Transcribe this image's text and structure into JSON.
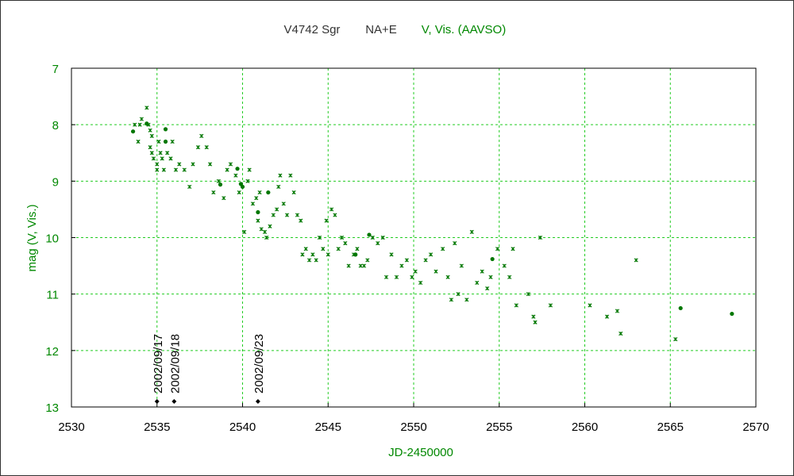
{
  "chart_data": {
    "type": "scatter",
    "title_star": "V4742 Sgr",
    "title_source": "NA+E",
    "title_band": "V, Vis. (AAVSO)",
    "xlabel": "JD-2450000",
    "ylabel": "mag (V, Vis.)",
    "xlim": [
      2530,
      2570
    ],
    "ylim": [
      7,
      13
    ],
    "y_inverted": true,
    "x_ticks": [
      2530,
      2535,
      2540,
      2545,
      2550,
      2555,
      2560,
      2565,
      2570
    ],
    "y_ticks": [
      7,
      8,
      9,
      10,
      11,
      12,
      13
    ],
    "grid": true,
    "colors": {
      "data": "#007700",
      "grid": "#22cc22",
      "axis": "#000000",
      "title_band": "#008800",
      "title_main": "#333333",
      "marker": "#000000"
    },
    "date_markers": [
      {
        "x": 2535.0,
        "label": "2002/09/17"
      },
      {
        "x": 2536.0,
        "label": "2002/09/18"
      },
      {
        "x": 2540.9,
        "label": "2002/09/23"
      }
    ],
    "series": [
      {
        "marker": "dot",
        "points": [
          [
            2533.6,
            8.12
          ],
          [
            2534.4,
            7.98
          ],
          [
            2535.5,
            8.08
          ],
          [
            2535.5,
            8.3
          ],
          [
            2538.7,
            9.06
          ],
          [
            2539.7,
            8.78
          ],
          [
            2539.9,
            9.05
          ],
          [
            2540.0,
            9.1
          ],
          [
            2540.9,
            9.55
          ],
          [
            2541.5,
            9.2
          ],
          [
            2546.6,
            10.3
          ],
          [
            2547.4,
            9.95
          ],
          [
            2554.6,
            10.38
          ],
          [
            2565.6,
            11.25
          ],
          [
            2568.6,
            11.35
          ]
        ]
      },
      {
        "marker": "cross",
        "points": [
          [
            2533.7,
            8.0
          ],
          [
            2533.9,
            8.3
          ],
          [
            2534.0,
            8.0
          ],
          [
            2534.1,
            7.9
          ],
          [
            2534.4,
            7.7
          ],
          [
            2534.5,
            8.0
          ],
          [
            2534.6,
            8.1
          ],
          [
            2534.6,
            8.4
          ],
          [
            2534.7,
            8.2
          ],
          [
            2534.7,
            8.5
          ],
          [
            2534.8,
            8.6
          ],
          [
            2535.0,
            8.7
          ],
          [
            2535.0,
            8.8
          ],
          [
            2535.1,
            8.3
          ],
          [
            2535.2,
            8.5
          ],
          [
            2535.3,
            8.6
          ],
          [
            2535.4,
            8.8
          ],
          [
            2535.6,
            8.5
          ],
          [
            2535.8,
            8.6
          ],
          [
            2535.9,
            8.3
          ],
          [
            2536.1,
            8.8
          ],
          [
            2536.3,
            8.7
          ],
          [
            2536.6,
            8.8
          ],
          [
            2536.9,
            9.1
          ],
          [
            2537.1,
            8.7
          ],
          [
            2537.4,
            8.4
          ],
          [
            2537.6,
            8.2
          ],
          [
            2537.9,
            8.4
          ],
          [
            2538.1,
            8.7
          ],
          [
            2538.3,
            9.2
          ],
          [
            2538.6,
            9.0
          ],
          [
            2538.9,
            9.3
          ],
          [
            2539.1,
            8.8
          ],
          [
            2539.3,
            8.7
          ],
          [
            2539.6,
            8.9
          ],
          [
            2539.8,
            9.2
          ],
          [
            2540.1,
            9.9
          ],
          [
            2540.3,
            9.0
          ],
          [
            2540.4,
            8.8
          ],
          [
            2540.6,
            9.4
          ],
          [
            2540.8,
            9.3
          ],
          [
            2540.9,
            9.7
          ],
          [
            2541.0,
            9.2
          ],
          [
            2541.1,
            9.85
          ],
          [
            2541.3,
            9.9
          ],
          [
            2541.4,
            10.0
          ],
          [
            2541.6,
            9.8
          ],
          [
            2541.8,
            9.6
          ],
          [
            2542.0,
            9.5
          ],
          [
            2542.1,
            9.1
          ],
          [
            2542.2,
            8.9
          ],
          [
            2542.4,
            9.4
          ],
          [
            2542.6,
            9.6
          ],
          [
            2542.8,
            8.9
          ],
          [
            2543.0,
            9.2
          ],
          [
            2543.2,
            9.6
          ],
          [
            2543.4,
            9.7
          ],
          [
            2543.5,
            10.3
          ],
          [
            2543.7,
            10.2
          ],
          [
            2543.9,
            10.4
          ],
          [
            2544.1,
            10.3
          ],
          [
            2544.3,
            10.4
          ],
          [
            2544.5,
            10.0
          ],
          [
            2544.7,
            10.2
          ],
          [
            2544.9,
            9.7
          ],
          [
            2545.0,
            10.3
          ],
          [
            2545.2,
            9.5
          ],
          [
            2545.4,
            9.6
          ],
          [
            2545.6,
            10.2
          ],
          [
            2545.8,
            10.0
          ],
          [
            2546.0,
            10.1
          ],
          [
            2546.2,
            10.5
          ],
          [
            2546.5,
            10.3
          ],
          [
            2546.7,
            10.2
          ],
          [
            2546.9,
            10.5
          ],
          [
            2547.1,
            10.5
          ],
          [
            2547.3,
            10.4
          ],
          [
            2547.6,
            10.0
          ],
          [
            2547.9,
            10.1
          ],
          [
            2548.2,
            10.0
          ],
          [
            2548.4,
            10.7
          ],
          [
            2548.7,
            10.3
          ],
          [
            2549.0,
            10.7
          ],
          [
            2549.3,
            10.5
          ],
          [
            2549.6,
            10.4
          ],
          [
            2549.9,
            10.7
          ],
          [
            2550.1,
            10.6
          ],
          [
            2550.4,
            10.8
          ],
          [
            2550.7,
            10.4
          ],
          [
            2551.0,
            10.3
          ],
          [
            2551.3,
            10.6
          ],
          [
            2551.7,
            10.2
          ],
          [
            2552.0,
            10.7
          ],
          [
            2552.2,
            11.1
          ],
          [
            2552.4,
            10.1
          ],
          [
            2552.6,
            11.0
          ],
          [
            2552.8,
            10.5
          ],
          [
            2553.1,
            11.1
          ],
          [
            2553.4,
            9.9
          ],
          [
            2553.7,
            10.8
          ],
          [
            2554.0,
            10.6
          ],
          [
            2554.3,
            10.9
          ],
          [
            2554.5,
            10.7
          ],
          [
            2554.9,
            10.2
          ],
          [
            2555.3,
            10.5
          ],
          [
            2555.6,
            10.7
          ],
          [
            2555.8,
            10.2
          ],
          [
            2556.0,
            11.2
          ],
          [
            2556.7,
            11.0
          ],
          [
            2557.0,
            11.4
          ],
          [
            2557.1,
            11.5
          ],
          [
            2557.4,
            10.0
          ],
          [
            2558.0,
            11.2
          ],
          [
            2560.3,
            11.2
          ],
          [
            2561.3,
            11.4
          ],
          [
            2561.9,
            11.3
          ],
          [
            2562.1,
            11.7
          ],
          [
            2563.0,
            10.4
          ],
          [
            2565.3,
            11.8
          ]
        ]
      }
    ]
  }
}
